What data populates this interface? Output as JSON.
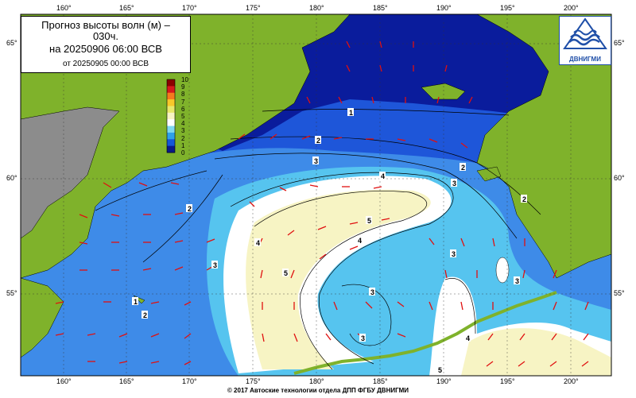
{
  "title": {
    "line1": "Прогноз высоты волн (м) –",
    "line2": "030ч.",
    "line3": "на 20250906 06:00 ВСВ",
    "line4": "от 20250905 00:00 ВСВ"
  },
  "logo": {
    "text": "ДВНИГМИ",
    "icon": "dvnigmi-logo-icon"
  },
  "footer": "© 2017 Автоские технологии отдела ДПП ФГБУ ДВНИГМИ",
  "lon_labels": [
    "160°",
    "165°",
    "170°",
    "175°",
    "180°",
    "185°",
    "190°",
    "195°",
    "200°"
  ],
  "lat_labels": [
    "65°",
    "60°",
    "55°"
  ],
  "colorbar": {
    "ticks": [
      "10",
      "9",
      "8",
      "7",
      "6",
      "5",
      "4",
      "3",
      "2",
      "1",
      "0"
    ],
    "colors": [
      "#8b0000",
      "#d7191c",
      "#f57a1e",
      "#f7c82a",
      "#e8e86a",
      "#f7f4c4",
      "#ffffff",
      "#7fd8f0",
      "#2fa0ea",
      "#1556d8",
      "#0a1a8a"
    ]
  },
  "contour_labels": [
    "1",
    "2",
    "3",
    "2",
    "2",
    "3",
    "3",
    "4",
    "5",
    "4",
    "5",
    "3",
    "3",
    "3",
    "4",
    "5",
    "2",
    "1",
    "2",
    "3",
    "4"
  ],
  "colors": {
    "land": "#7fb22b",
    "gray_land": "#8c8c8c",
    "deep_sea": "#0a1a9a",
    "arrow": "#e01010"
  }
}
